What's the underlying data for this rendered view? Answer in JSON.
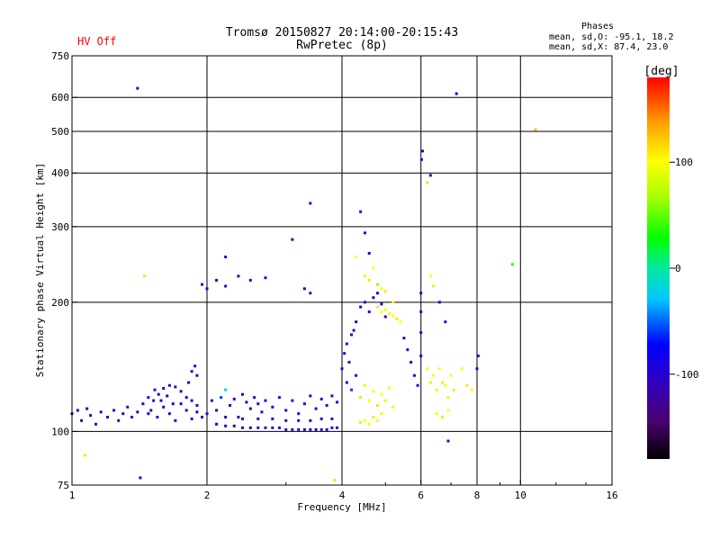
{
  "header": {
    "status": "HV Off",
    "title_line1": "Tromsø 20150827 20:14:00-20:15:43",
    "title_line2": "RwPretec (8p)",
    "stats_title": "Phases",
    "stats_o": "mean, sd,O: -95.1, 18.2",
    "stats_x": "mean, sd,X:  87.4, 23.0"
  },
  "colorbar": {
    "label": "[deg]",
    "range": [
      -180,
      180
    ],
    "ticks": [
      {
        "value": 100,
        "label": "100"
      },
      {
        "value": 0,
        "label": "0"
      },
      {
        "value": -100,
        "label": "-100"
      }
    ]
  },
  "chart_data": {
    "type": "scatter",
    "xlabel": "Frequency [MHz]",
    "ylabel": "Stationary phase Virtual Height [km]",
    "x_scale": "log",
    "y_scale": "log",
    "xlim": [
      1,
      16
    ],
    "ylim": [
      75,
      750
    ],
    "x_ticks": [
      {
        "value": 1,
        "label": "1"
      },
      {
        "value": 2,
        "label": "2"
      },
      {
        "value": 4,
        "label": "4"
      },
      {
        "value": 6,
        "label": "6"
      },
      {
        "value": 8,
        "label": "8"
      },
      {
        "value": 10,
        "label": "10"
      },
      {
        "value": 16,
        "label": "16"
      }
    ],
    "x_grid": [
      2,
      4,
      6,
      8,
      10
    ],
    "y_ticks": [
      {
        "value": 75,
        "label": "75"
      },
      {
        "value": 100,
        "label": "100"
      },
      {
        "value": 200,
        "label": "200"
      },
      {
        "value": 300,
        "label": "300"
      },
      {
        "value": 400,
        "label": "400"
      },
      {
        "value": 500,
        "label": "500"
      },
      {
        "value": 600,
        "label": "600"
      },
      {
        "value": 750,
        "label": "750"
      }
    ],
    "y_grid": [
      100,
      200,
      300,
      400,
      500,
      600
    ],
    "grid": true,
    "series": [
      {
        "color_key": "phase_deg",
        "points": [
          [
            1.0,
            110,
            -105
          ],
          [
            1.03,
            112,
            -100
          ],
          [
            1.05,
            106,
            -110
          ],
          [
            1.08,
            113,
            -95
          ],
          [
            1.1,
            109,
            -100
          ],
          [
            1.13,
            104,
            -105
          ],
          [
            1.16,
            111,
            -98
          ],
          [
            1.2,
            108,
            -102
          ],
          [
            1.24,
            112,
            -100
          ],
          [
            1.27,
            106,
            -108
          ],
          [
            1.3,
            110,
            -96
          ],
          [
            1.33,
            114,
            -100
          ],
          [
            1.36,
            108,
            -104
          ],
          [
            1.4,
            111,
            -100
          ],
          [
            1.44,
            116,
            -98
          ],
          [
            1.48,
            110,
            -103
          ],
          [
            1.52,
            118,
            -100
          ],
          [
            1.56,
            122,
            -96
          ],
          [
            1.6,
            126,
            -100
          ],
          [
            1.65,
            128,
            -98
          ],
          [
            1.7,
            127,
            -102
          ],
          [
            1.75,
            124,
            -100
          ],
          [
            1.8,
            120,
            -96
          ],
          [
            1.85,
            118,
            -100
          ],
          [
            1.9,
            115,
            -104
          ],
          [
            1.5,
            112,
            -108
          ],
          [
            1.55,
            108,
            -100
          ],
          [
            1.6,
            114,
            -95
          ],
          [
            1.65,
            110,
            -100
          ],
          [
            1.7,
            106,
            -104
          ],
          [
            1.75,
            116,
            -100
          ],
          [
            1.8,
            112,
            -97
          ],
          [
            1.85,
            107,
            -103
          ],
          [
            1.9,
            111,
            -100
          ],
          [
            1.95,
            108,
            -98
          ],
          [
            1.48,
            120,
            -100
          ],
          [
            1.53,
            125,
            -100
          ],
          [
            1.58,
            118,
            -104
          ],
          [
            1.63,
            121,
            -100
          ],
          [
            1.68,
            116,
            -96
          ],
          [
            1.85,
            138,
            -102
          ],
          [
            1.88,
            142,
            -100
          ],
          [
            1.9,
            135,
            -98
          ],
          [
            1.82,
            130,
            -100
          ],
          [
            2.0,
            110,
            -100
          ],
          [
            2.05,
            118,
            -95
          ],
          [
            2.1,
            112,
            -100
          ],
          [
            2.15,
            120,
            -60
          ],
          [
            2.2,
            125,
            -20
          ],
          [
            2.25,
            115,
            -100
          ],
          [
            2.3,
            119,
            -98
          ],
          [
            2.35,
            108,
            -100
          ],
          [
            2.4,
            122,
            -100
          ],
          [
            2.45,
            117,
            -104
          ],
          [
            2.5,
            113,
            -100
          ],
          [
            2.55,
            120,
            -96
          ],
          [
            2.6,
            116,
            -100
          ],
          [
            2.65,
            111,
            -102
          ],
          [
            2.7,
            118,
            -100
          ],
          [
            2.8,
            114,
            -98
          ],
          [
            2.9,
            120,
            -100
          ],
          [
            3.0,
            112,
            -104
          ],
          [
            3.1,
            118,
            -100
          ],
          [
            3.2,
            110,
            -97
          ],
          [
            3.3,
            116,
            -100
          ],
          [
            3.4,
            121,
            -102
          ],
          [
            3.5,
            113,
            -100
          ],
          [
            3.6,
            119,
            -98
          ],
          [
            3.7,
            115,
            -100
          ],
          [
            3.8,
            121,
            -104
          ],
          [
            3.9,
            117,
            -100
          ],
          [
            2.1,
            104,
            -100
          ],
          [
            2.2,
            103,
            -102
          ],
          [
            2.3,
            103,
            -100
          ],
          [
            2.4,
            102,
            -98
          ],
          [
            2.5,
            102,
            -100
          ],
          [
            2.6,
            102,
            -102
          ],
          [
            2.7,
            102,
            -100
          ],
          [
            2.8,
            102,
            -98
          ],
          [
            2.9,
            102,
            -100
          ],
          [
            3.0,
            101,
            -102
          ],
          [
            3.1,
            101,
            -100
          ],
          [
            3.2,
            101,
            -98
          ],
          [
            3.3,
            101,
            -100
          ],
          [
            3.4,
            101,
            -102
          ],
          [
            3.5,
            101,
            -100
          ],
          [
            3.6,
            101,
            -98
          ],
          [
            3.7,
            101,
            -100
          ],
          [
            3.8,
            102,
            -102
          ],
          [
            3.9,
            102,
            -100
          ],
          [
            2.2,
            108,
            -100
          ],
          [
            2.4,
            107,
            -98
          ],
          [
            2.6,
            107,
            -100
          ],
          [
            2.8,
            107,
            -102
          ],
          [
            3.0,
            106,
            -100
          ],
          [
            3.2,
            106,
            -98
          ],
          [
            3.4,
            106,
            -100
          ],
          [
            3.6,
            107,
            -102
          ],
          [
            3.8,
            107,
            -100
          ],
          [
            1.95,
            220,
            -100
          ],
          [
            2.0,
            215,
            -98
          ],
          [
            2.1,
            225,
            -100
          ],
          [
            2.2,
            218,
            -104
          ],
          [
            2.35,
            230,
            -100
          ],
          [
            2.5,
            225,
            -98
          ],
          [
            2.7,
            228,
            -100
          ],
          [
            3.3,
            215,
            -100
          ],
          [
            3.4,
            210,
            -102
          ],
          [
            2.2,
            255,
            -100
          ],
          [
            3.4,
            340,
            -100
          ],
          [
            3.1,
            280,
            -95
          ],
          [
            1.45,
            230,
            110
          ],
          [
            1.4,
            630,
            -100
          ],
          [
            1.42,
            78,
            -100
          ],
          [
            1.07,
            88,
            110
          ],
          [
            4.0,
            140,
            -100
          ],
          [
            4.05,
            152,
            -98
          ],
          [
            4.1,
            160,
            -100
          ],
          [
            4.15,
            145,
            -104
          ],
          [
            4.2,
            168,
            -100
          ],
          [
            4.25,
            172,
            -98
          ],
          [
            4.3,
            180,
            -100
          ],
          [
            4.4,
            195,
            -96
          ],
          [
            4.5,
            200,
            -100
          ],
          [
            4.6,
            190,
            -104
          ],
          [
            4.7,
            205,
            -100
          ],
          [
            4.8,
            210,
            -95
          ],
          [
            4.9,
            198,
            -100
          ],
          [
            5.0,
            185,
            -102
          ],
          [
            4.1,
            130,
            -100
          ],
          [
            4.2,
            125,
            -60
          ],
          [
            4.3,
            135,
            -100
          ],
          [
            4.4,
            120,
            80
          ],
          [
            4.5,
            128,
            90
          ],
          [
            4.6,
            118,
            100
          ],
          [
            4.7,
            124,
            95
          ],
          [
            4.8,
            115,
            110
          ],
          [
            4.9,
            122,
            100
          ],
          [
            5.0,
            118,
            90
          ],
          [
            5.1,
            126,
            100
          ],
          [
            5.2,
            114,
            105
          ],
          [
            4.4,
            105,
            110
          ],
          [
            4.5,
            106,
            100
          ],
          [
            4.6,
            104,
            95
          ],
          [
            4.7,
            108,
            110
          ],
          [
            4.8,
            106,
            100
          ],
          [
            4.9,
            110,
            90
          ],
          [
            4.8,
            195,
            110
          ],
          [
            4.9,
            190,
            100
          ],
          [
            5.0,
            192,
            95
          ],
          [
            5.1,
            188,
            105
          ],
          [
            5.2,
            186,
            100
          ],
          [
            5.3,
            183,
            110
          ],
          [
            5.4,
            180,
            100
          ],
          [
            4.5,
            230,
            90
          ],
          [
            4.6,
            225,
            110
          ],
          [
            4.7,
            240,
            100
          ],
          [
            4.8,
            220,
            60
          ],
          [
            4.9,
            215,
            100
          ],
          [
            5.0,
            212,
            110
          ],
          [
            5.2,
            200,
            100
          ],
          [
            4.5,
            290,
            -100
          ],
          [
            4.6,
            260,
            -98
          ],
          [
            4.4,
            325,
            -100
          ],
          [
            4.3,
            255,
            100
          ],
          [
            5.5,
            165,
            -100
          ],
          [
            5.6,
            155,
            -98
          ],
          [
            5.7,
            145,
            -100
          ],
          [
            5.8,
            135,
            -102
          ],
          [
            5.9,
            128,
            -100
          ],
          [
            6.0,
            150,
            -100
          ],
          [
            6.0,
            170,
            -98
          ],
          [
            6.0,
            190,
            -100
          ],
          [
            6.0,
            210,
            -102
          ],
          [
            6.05,
            450,
            -100
          ],
          [
            6.02,
            430,
            -98
          ],
          [
            6.2,
            380,
            110
          ],
          [
            6.3,
            395,
            -100
          ],
          [
            6.2,
            140,
            100
          ],
          [
            6.3,
            130,
            110
          ],
          [
            6.4,
            135,
            100
          ],
          [
            6.5,
            125,
            90
          ],
          [
            6.6,
            140,
            100
          ],
          [
            6.7,
            130,
            110
          ],
          [
            6.8,
            128,
            100
          ],
          [
            6.9,
            120,
            90
          ],
          [
            7.0,
            135,
            100
          ],
          [
            7.1,
            125,
            110
          ],
          [
            6.5,
            110,
            100
          ],
          [
            6.7,
            108,
            110
          ],
          [
            6.9,
            112,
            100
          ],
          [
            6.4,
            218,
            110
          ],
          [
            6.3,
            230,
            100
          ],
          [
            6.6,
            200,
            -100
          ],
          [
            6.8,
            180,
            -98
          ],
          [
            6.9,
            95,
            -100
          ],
          [
            7.2,
            612,
            -100
          ],
          [
            7.4,
            140,
            100
          ],
          [
            7.6,
            128,
            110
          ],
          [
            7.8,
            125,
            100
          ],
          [
            8.0,
            140,
            -100
          ],
          [
            8.05,
            150,
            -98
          ],
          [
            9.6,
            245,
            40
          ],
          [
            10.8,
            505,
            120
          ],
          [
            3.85,
            77,
            110
          ]
        ]
      }
    ]
  }
}
